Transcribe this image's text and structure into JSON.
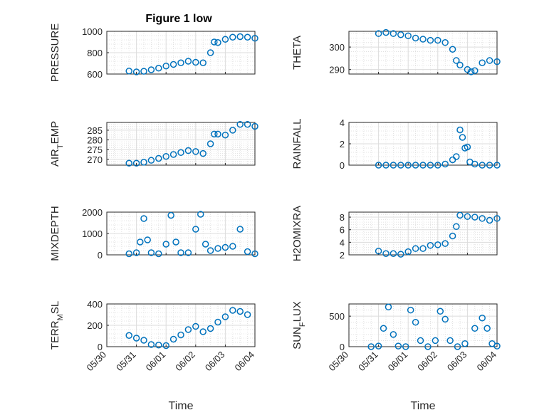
{
  "figure_title": "Figure 1 low",
  "colors": {
    "marker": "#0072bd",
    "axis": "#262626",
    "grid": "#dcdcdc"
  },
  "xlabel": "Time",
  "date_ticks": [
    "05/30",
    "05/31",
    "06/01",
    "06/02",
    "06/03",
    "06/04"
  ],
  "chart_data": [
    {
      "type": "scatter",
      "title": "Figure 1 low",
      "ylabel_main": "PRESSURE",
      "ylabel_sub": "",
      "xlim": [
        "2023-05-30",
        "2023-06-04"
      ],
      "ylim": [
        600,
        1000
      ],
      "yticks": [
        600,
        800,
        1000
      ],
      "ytick_labels": [
        "600",
        "800",
        "1000"
      ],
      "grid": true,
      "points": [
        [
          "2023-05-30 18:00",
          628
        ],
        [
          "2023-05-31 00:00",
          620
        ],
        [
          "2023-05-31 06:00",
          626
        ],
        [
          "2023-05-31 12:00",
          640
        ],
        [
          "2023-05-31 18:00",
          655
        ],
        [
          "2023-06-01 00:00",
          675
        ],
        [
          "2023-06-01 06:00",
          690
        ],
        [
          "2023-06-01 12:00",
          705
        ],
        [
          "2023-06-01 18:00",
          720
        ],
        [
          "2023-06-02 00:00",
          710
        ],
        [
          "2023-06-02 06:00",
          705
        ],
        [
          "2023-06-02 12:00",
          800
        ],
        [
          "2023-06-02 15:00",
          900
        ],
        [
          "2023-06-02 18:00",
          895
        ],
        [
          "2023-06-03 00:00",
          925
        ],
        [
          "2023-06-03 06:00",
          945
        ],
        [
          "2023-06-03 12:00",
          950
        ],
        [
          "2023-06-03 18:00",
          945
        ],
        [
          "2023-06-04 00:00",
          935
        ]
      ]
    },
    {
      "type": "scatter",
      "ylabel_main": "THETA",
      "ylabel_sub": "",
      "xlim": [
        "2023-05-30",
        "2023-06-04"
      ],
      "ylim": [
        288,
        307
      ],
      "yticks": [
        290,
        300
      ],
      "ytick_labels": [
        "290",
        "300"
      ],
      "grid": true,
      "points": [
        [
          "2023-05-31 00:00",
          306
        ],
        [
          "2023-05-31 06:00",
          306.5
        ],
        [
          "2023-05-31 12:00",
          306
        ],
        [
          "2023-05-31 18:00",
          305.5
        ],
        [
          "2023-06-01 00:00",
          305
        ],
        [
          "2023-06-01 06:00",
          304
        ],
        [
          "2023-06-01 12:00",
          303.5
        ],
        [
          "2023-06-01 18:00",
          303
        ],
        [
          "2023-06-02 00:00",
          303
        ],
        [
          "2023-06-02 06:00",
          302
        ],
        [
          "2023-06-02 12:00",
          299
        ],
        [
          "2023-06-02 15:00",
          294
        ],
        [
          "2023-06-02 18:00",
          292
        ],
        [
          "2023-06-03 00:00",
          290
        ],
        [
          "2023-06-03 03:00",
          289
        ],
        [
          "2023-06-03 06:00",
          289.5
        ],
        [
          "2023-06-03 12:00",
          293
        ],
        [
          "2023-06-03 18:00",
          294
        ],
        [
          "2023-06-04 00:00",
          293.5
        ]
      ]
    },
    {
      "type": "scatter",
      "ylabel_main": "AIR",
      "ylabel_sub": "T",
      "ylabel_tail": "EMP",
      "xlim": [
        "2023-05-30",
        "2023-06-04"
      ],
      "ylim": [
        267,
        289
      ],
      "yticks": [
        270,
        275,
        280,
        285
      ],
      "ytick_labels": [
        "270",
        "275",
        "280",
        "285"
      ],
      "grid": true,
      "points": [
        [
          "2023-05-30 18:00",
          268
        ],
        [
          "2023-05-31 00:00",
          268
        ],
        [
          "2023-05-31 06:00",
          268.5
        ],
        [
          "2023-05-31 12:00",
          269.5
        ],
        [
          "2023-05-31 18:00",
          270.5
        ],
        [
          "2023-06-01 00:00",
          271.5
        ],
        [
          "2023-06-01 06:00",
          272.5
        ],
        [
          "2023-06-01 12:00",
          273.5
        ],
        [
          "2023-06-01 18:00",
          274.5
        ],
        [
          "2023-06-02 00:00",
          274
        ],
        [
          "2023-06-02 06:00",
          273
        ],
        [
          "2023-06-02 12:00",
          278
        ],
        [
          "2023-06-02 15:00",
          283
        ],
        [
          "2023-06-02 18:00",
          283
        ],
        [
          "2023-06-03 00:00",
          282.5
        ],
        [
          "2023-06-03 06:00",
          285
        ],
        [
          "2023-06-03 12:00",
          288
        ],
        [
          "2023-06-03 18:00",
          288
        ],
        [
          "2023-06-04 00:00",
          287
        ]
      ]
    },
    {
      "type": "scatter",
      "ylabel_main": "RAINFALL",
      "ylabel_sub": "",
      "xlim": [
        "2023-05-30",
        "2023-06-04"
      ],
      "ylim": [
        0,
        4
      ],
      "yticks": [
        0,
        2,
        4
      ],
      "ytick_labels": [
        "0",
        "2",
        "4"
      ],
      "grid": true,
      "points": [
        [
          "2023-05-31 00:00",
          0
        ],
        [
          "2023-05-31 06:00",
          0
        ],
        [
          "2023-05-31 12:00",
          0
        ],
        [
          "2023-05-31 18:00",
          0
        ],
        [
          "2023-06-01 00:00",
          0
        ],
        [
          "2023-06-01 06:00",
          0
        ],
        [
          "2023-06-01 12:00",
          0
        ],
        [
          "2023-06-01 18:00",
          0
        ],
        [
          "2023-06-02 00:00",
          0
        ],
        [
          "2023-06-02 06:00",
          0.1
        ],
        [
          "2023-06-02 12:00",
          0.5
        ],
        [
          "2023-06-02 15:00",
          0.8
        ],
        [
          "2023-06-02 18:00",
          3.3
        ],
        [
          "2023-06-02 20:00",
          2.6
        ],
        [
          "2023-06-02 22:00",
          1.6
        ],
        [
          "2023-06-03 00:00",
          1.7
        ],
        [
          "2023-06-03 02:00",
          0.3
        ],
        [
          "2023-06-03 06:00",
          0.1
        ],
        [
          "2023-06-03 12:00",
          0
        ],
        [
          "2023-06-03 18:00",
          0
        ],
        [
          "2023-06-04 00:00",
          0
        ]
      ]
    },
    {
      "type": "scatter",
      "ylabel_main": "MIXDEPTH",
      "ylabel_sub": "",
      "xlim": [
        "2023-05-30",
        "2023-06-04"
      ],
      "ylim": [
        0,
        2000
      ],
      "yticks": [
        0,
        1000,
        2000
      ],
      "ytick_labels": [
        "0",
        "1000",
        "2000"
      ],
      "grid": true,
      "points": [
        [
          "2023-05-30 18:00",
          50
        ],
        [
          "2023-05-31 00:00",
          100
        ],
        [
          "2023-05-31 03:00",
          600
        ],
        [
          "2023-05-31 06:00",
          1700
        ],
        [
          "2023-05-31 09:00",
          700
        ],
        [
          "2023-05-31 12:00",
          100
        ],
        [
          "2023-05-31 18:00",
          50
        ],
        [
          "2023-06-01 00:00",
          500
        ],
        [
          "2023-06-01 04:00",
          1850
        ],
        [
          "2023-06-01 08:00",
          600
        ],
        [
          "2023-06-01 12:00",
          100
        ],
        [
          "2023-06-01 18:00",
          100
        ],
        [
          "2023-06-02 00:00",
          1200
        ],
        [
          "2023-06-02 04:00",
          1900
        ],
        [
          "2023-06-02 08:00",
          500
        ],
        [
          "2023-06-02 12:00",
          200
        ],
        [
          "2023-06-02 18:00",
          300
        ],
        [
          "2023-06-03 00:00",
          350
        ],
        [
          "2023-06-03 06:00",
          400
        ],
        [
          "2023-06-03 12:00",
          1200
        ],
        [
          "2023-06-03 18:00",
          150
        ],
        [
          "2023-06-04 00:00",
          50
        ]
      ]
    },
    {
      "type": "scatter",
      "ylabel_main": "H2OMIXRA",
      "ylabel_sub": "",
      "xlim": [
        "2023-05-30",
        "2023-06-04"
      ],
      "ylim": [
        2,
        8.8
      ],
      "yticks": [
        2,
        4,
        6,
        8
      ],
      "ytick_labels": [
        "2",
        "4",
        "6",
        "8"
      ],
      "grid": true,
      "points": [
        [
          "2023-05-31 00:00",
          2.6
        ],
        [
          "2023-05-31 06:00",
          2.2
        ],
        [
          "2023-05-31 12:00",
          2.2
        ],
        [
          "2023-05-31 18:00",
          2.1
        ],
        [
          "2023-06-01 00:00",
          2.5
        ],
        [
          "2023-06-01 06:00",
          3
        ],
        [
          "2023-06-01 12:00",
          3
        ],
        [
          "2023-06-01 18:00",
          3.5
        ],
        [
          "2023-06-02 00:00",
          3.6
        ],
        [
          "2023-06-02 06:00",
          3.8
        ],
        [
          "2023-06-02 12:00",
          5
        ],
        [
          "2023-06-02 15:00",
          6.5
        ],
        [
          "2023-06-02 18:00",
          8.3
        ],
        [
          "2023-06-03 00:00",
          8.1
        ],
        [
          "2023-06-03 06:00",
          8
        ],
        [
          "2023-06-03 12:00",
          7.8
        ],
        [
          "2023-06-03 18:00",
          7.5
        ],
        [
          "2023-06-04 00:00",
          7.8
        ]
      ]
    },
    {
      "type": "scatter",
      "ylabel_main": "TERR",
      "ylabel_sub": "M",
      "ylabel_tail": "SL",
      "xlim": [
        "2023-05-30",
        "2023-06-04"
      ],
      "ylim": [
        0,
        400
      ],
      "yticks": [
        0,
        200,
        400
      ],
      "ytick_labels": [
        "0",
        "200",
        "400"
      ],
      "grid": true,
      "points": [
        [
          "2023-05-30 18:00",
          105
        ],
        [
          "2023-05-31 00:00",
          80
        ],
        [
          "2023-05-31 06:00",
          60
        ],
        [
          "2023-05-31 12:00",
          20
        ],
        [
          "2023-05-31 18:00",
          15
        ],
        [
          "2023-06-01 00:00",
          10
        ],
        [
          "2023-06-01 06:00",
          70
        ],
        [
          "2023-06-01 12:00",
          110
        ],
        [
          "2023-06-01 18:00",
          160
        ],
        [
          "2023-06-02 00:00",
          190
        ],
        [
          "2023-06-02 06:00",
          140
        ],
        [
          "2023-06-02 12:00",
          170
        ],
        [
          "2023-06-02 18:00",
          230
        ],
        [
          "2023-06-03 00:00",
          280
        ],
        [
          "2023-06-03 06:00",
          340
        ],
        [
          "2023-06-03 12:00",
          330
        ],
        [
          "2023-06-03 18:00",
          300
        ]
      ]
    },
    {
      "type": "scatter",
      "ylabel_main": "SUN",
      "ylabel_sub": "F",
      "ylabel_tail": "LUX",
      "xlim": [
        "2023-05-30",
        "2023-06-04"
      ],
      "ylim": [
        0,
        700
      ],
      "yticks": [
        0,
        500
      ],
      "ytick_labels": [
        "0",
        "500"
      ],
      "grid": true,
      "points": [
        [
          "2023-05-30 18:00",
          0
        ],
        [
          "2023-05-31 00:00",
          10
        ],
        [
          "2023-05-31 04:00",
          300
        ],
        [
          "2023-05-31 08:00",
          650
        ],
        [
          "2023-05-31 12:00",
          200
        ],
        [
          "2023-05-31 16:00",
          10
        ],
        [
          "2023-05-31 22:00",
          0
        ],
        [
          "2023-06-01 02:00",
          600
        ],
        [
          "2023-06-01 06:00",
          400
        ],
        [
          "2023-06-01 10:00",
          100
        ],
        [
          "2023-06-01 16:00",
          0
        ],
        [
          "2023-06-01 22:00",
          100
        ],
        [
          "2023-06-02 02:00",
          580
        ],
        [
          "2023-06-02 06:00",
          450
        ],
        [
          "2023-06-02 10:00",
          100
        ],
        [
          "2023-06-02 16:00",
          0
        ],
        [
          "2023-06-02 22:00",
          50
        ],
        [
          "2023-06-03 06:00",
          300
        ],
        [
          "2023-06-03 12:00",
          470
        ],
        [
          "2023-06-03 16:00",
          300
        ],
        [
          "2023-06-03 20:00",
          50
        ],
        [
          "2023-06-04 00:00",
          10
        ]
      ]
    }
  ]
}
